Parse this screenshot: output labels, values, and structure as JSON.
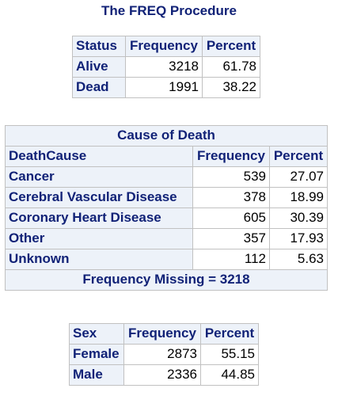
{
  "title": "The FREQ Procedure",
  "status_table": {
    "headers": [
      "Status",
      "Frequency",
      "Percent"
    ],
    "rows": [
      {
        "label": "Alive",
        "frequency": "3218",
        "percent": "61.78"
      },
      {
        "label": "Dead",
        "frequency": "1991",
        "percent": "38.22"
      }
    ]
  },
  "death_table": {
    "caption": "Cause of Death",
    "headers": [
      "DeathCause",
      "Frequency",
      "Percent"
    ],
    "rows": [
      {
        "label": "Cancer",
        "frequency": "539",
        "percent": "27.07"
      },
      {
        "label": "Cerebral Vascular Disease",
        "frequency": "378",
        "percent": "18.99"
      },
      {
        "label": "Coronary Heart Disease",
        "frequency": "605",
        "percent": "30.39"
      },
      {
        "label": "Other",
        "frequency": "357",
        "percent": "17.93"
      },
      {
        "label": "Unknown",
        "frequency": "112",
        "percent": "5.63"
      }
    ],
    "footer": "Frequency Missing = 3218"
  },
  "sex_table": {
    "headers": [
      "Sex",
      "Frequency",
      "Percent"
    ],
    "rows": [
      {
        "label": "Female",
        "frequency": "2873",
        "percent": "55.15"
      },
      {
        "label": "Male",
        "frequency": "2336",
        "percent": "44.85"
      }
    ]
  },
  "colors": {
    "header_text": "#112277",
    "header_background": "#edf2f9",
    "border": "#c1c1c1"
  }
}
